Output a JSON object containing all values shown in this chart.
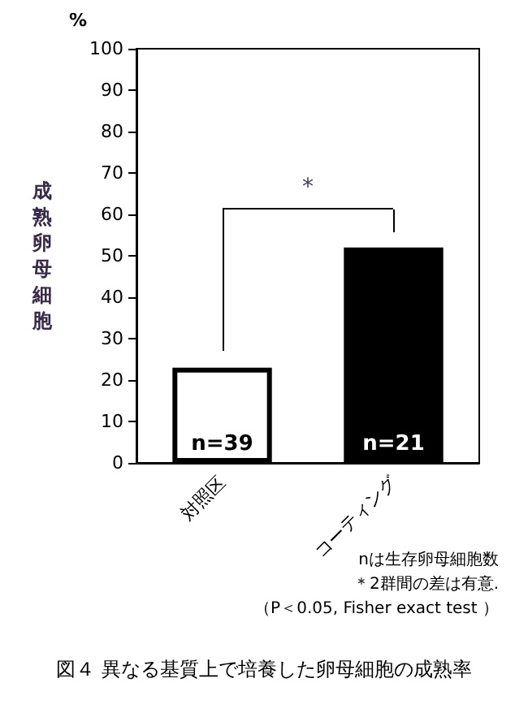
{
  "chart_data": {
    "type": "bar",
    "title": "図４ 異なる基質上で培養した卵母細胞の成熟率",
    "ylabel": "成熟卵母細胞",
    "categories": [
      "対照区",
      "コーティング"
    ],
    "values": [
      23,
      52
    ],
    "colors": [
      "#ffffff",
      "#000000"
    ],
    "ylim": [
      0,
      100
    ],
    "yticks": [
      0,
      10,
      20,
      30,
      40,
      50,
      60,
      70,
      80,
      90,
      100
    ],
    "grid": false,
    "annotations": [
      "%",
      "*",
      {
        "text": "n=39",
        "x": "対照区",
        "y": 0
      },
      {
        "text": "n=21",
        "x": "コーティング",
        "y": 0
      },
      "nは生存卵母細胞数",
      "＊2群間の差は有意.",
      "（P＜0.05, Fisher exact test ）"
    ]
  }
}
